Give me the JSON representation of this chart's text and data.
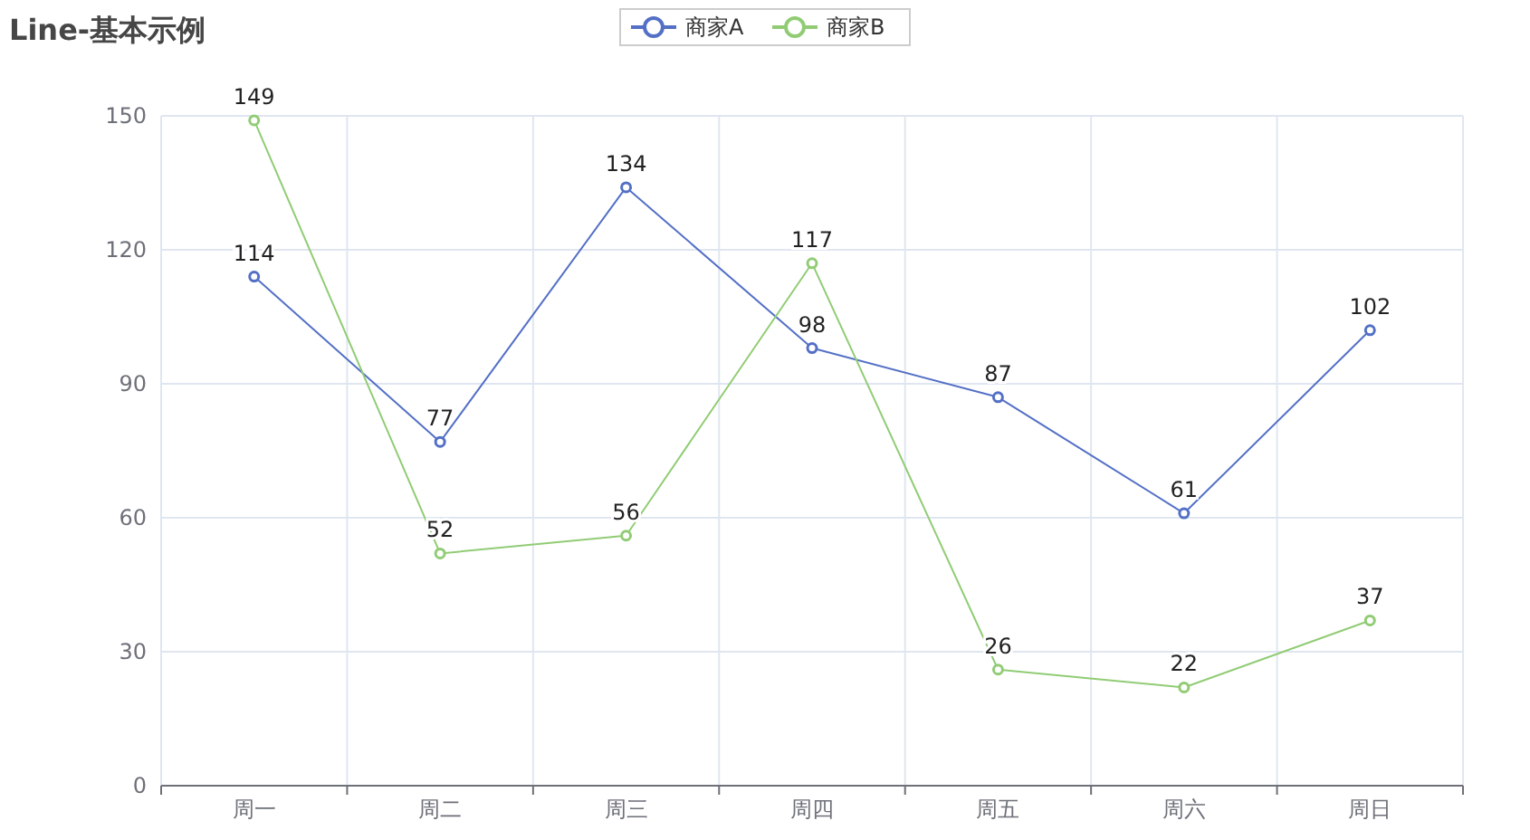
{
  "chart_data": {
    "type": "line",
    "title": "Line-基本示例",
    "categories": [
      "周一",
      "周二",
      "周三",
      "周四",
      "周五",
      "周六",
      "周日"
    ],
    "series": [
      {
        "name": "商家A",
        "color": "#5470c6",
        "values": [
          114,
          77,
          134,
          98,
          87,
          61,
          102
        ]
      },
      {
        "name": "商家B",
        "color": "#91cc75",
        "values": [
          149,
          52,
          56,
          117,
          26,
          22,
          37
        ]
      }
    ],
    "ylim": [
      0,
      150
    ],
    "yticks": [
      0,
      30,
      60,
      90,
      120,
      150
    ],
    "grid": true,
    "legend": "top",
    "marker": "circle",
    "line_style": "solid",
    "data_labels": true
  }
}
